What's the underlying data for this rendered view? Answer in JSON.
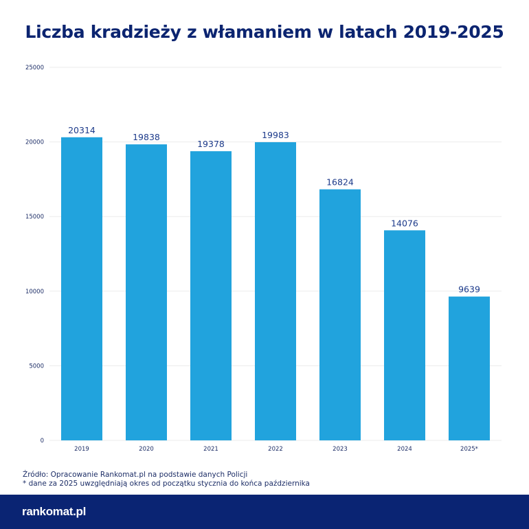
{
  "chart_data": {
    "type": "bar",
    "title": "Liczba kradzieży z włamaniem w latach 2019-2025",
    "categories": [
      "2019",
      "2020",
      "2021",
      "2022",
      "2023",
      "2024",
      "2025*"
    ],
    "values": [
      20314,
      19838,
      19378,
      19983,
      16824,
      14076,
      9639
    ],
    "ylim": [
      0,
      25000
    ],
    "yticks": [
      0,
      5000,
      10000,
      15000,
      20000,
      25000
    ],
    "grid": true,
    "data_labels": true,
    "bar_color": "#21a3dd",
    "label_color": "#1c3a8a"
  },
  "notes": {
    "source": "Źródło: Opracowanie Rankomat.pl na podstawie danych Policji",
    "footnote": "* dane za 2025 uwzględniają okres od początku stycznia do końca października"
  },
  "footer": {
    "logo": "rankomat.pl",
    "color": "#0a2473"
  }
}
